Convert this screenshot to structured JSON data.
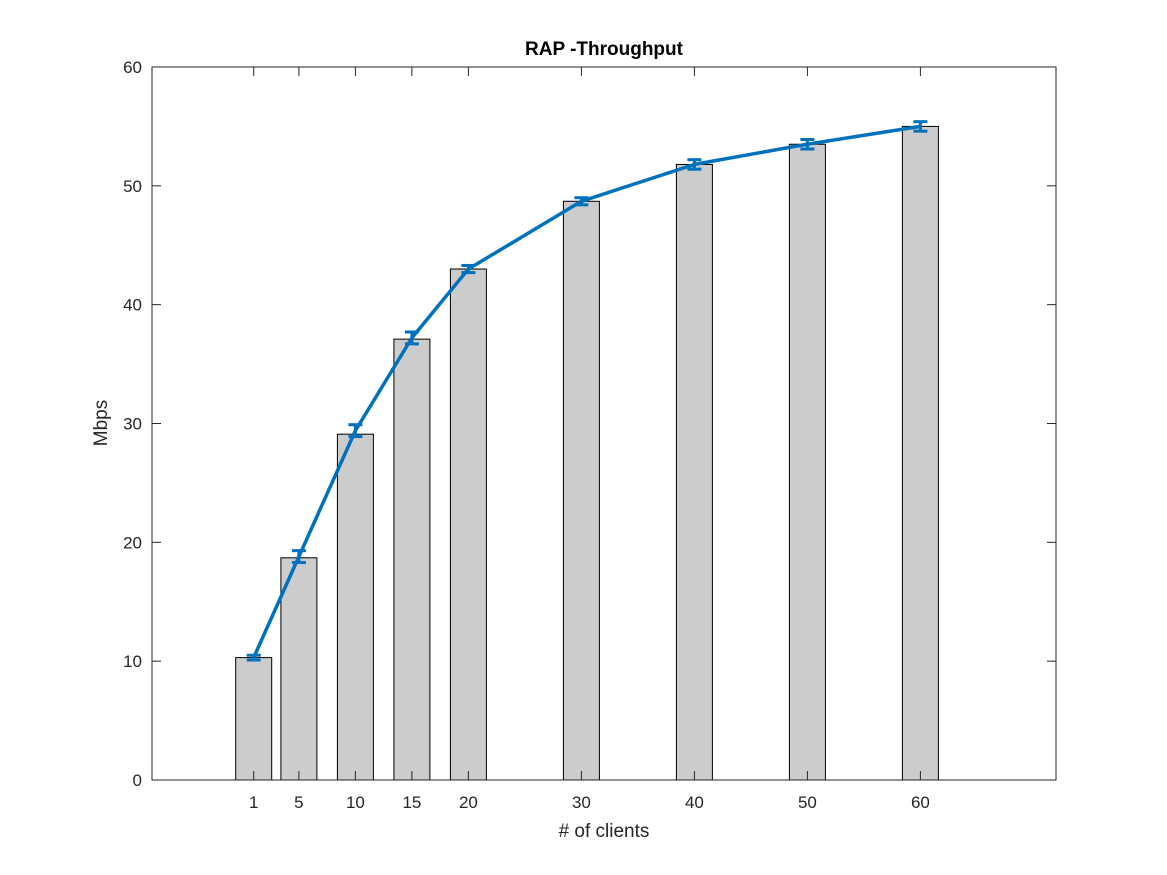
{
  "chart_data": {
    "type": "bar",
    "title": "RAP -Throughput",
    "xlabel": "# of clients",
    "ylabel": "Mbps",
    "x": [
      1,
      5,
      10,
      15,
      20,
      30,
      40,
      50,
      60
    ],
    "x_tick_labels": [
      "1",
      "5",
      "10",
      "15",
      "20",
      "30",
      "40",
      "50",
      "60"
    ],
    "xlim": [
      -8,
      72
    ],
    "ylim": [
      0,
      60
    ],
    "y_ticks": [
      0,
      10,
      20,
      30,
      40,
      50,
      60
    ],
    "y_tick_labels": [
      "0",
      "10",
      "20",
      "30",
      "40",
      "50",
      "60"
    ],
    "grid": false,
    "series": [
      {
        "kind": "bar",
        "values": [
          10.3,
          18.7,
          29.1,
          37.1,
          43.0,
          48.7,
          51.8,
          53.5,
          55.0
        ],
        "color": "#cccccc",
        "edge_color": "#000000"
      },
      {
        "kind": "line-errorbar",
        "values": [
          10.3,
          18.8,
          29.4,
          37.2,
          43.0,
          48.7,
          51.8,
          53.5,
          55.0
        ],
        "errors": [
          0.2,
          0.5,
          0.5,
          0.5,
          0.3,
          0.3,
          0.4,
          0.4,
          0.4
        ],
        "color": "#0072bd"
      }
    ]
  }
}
